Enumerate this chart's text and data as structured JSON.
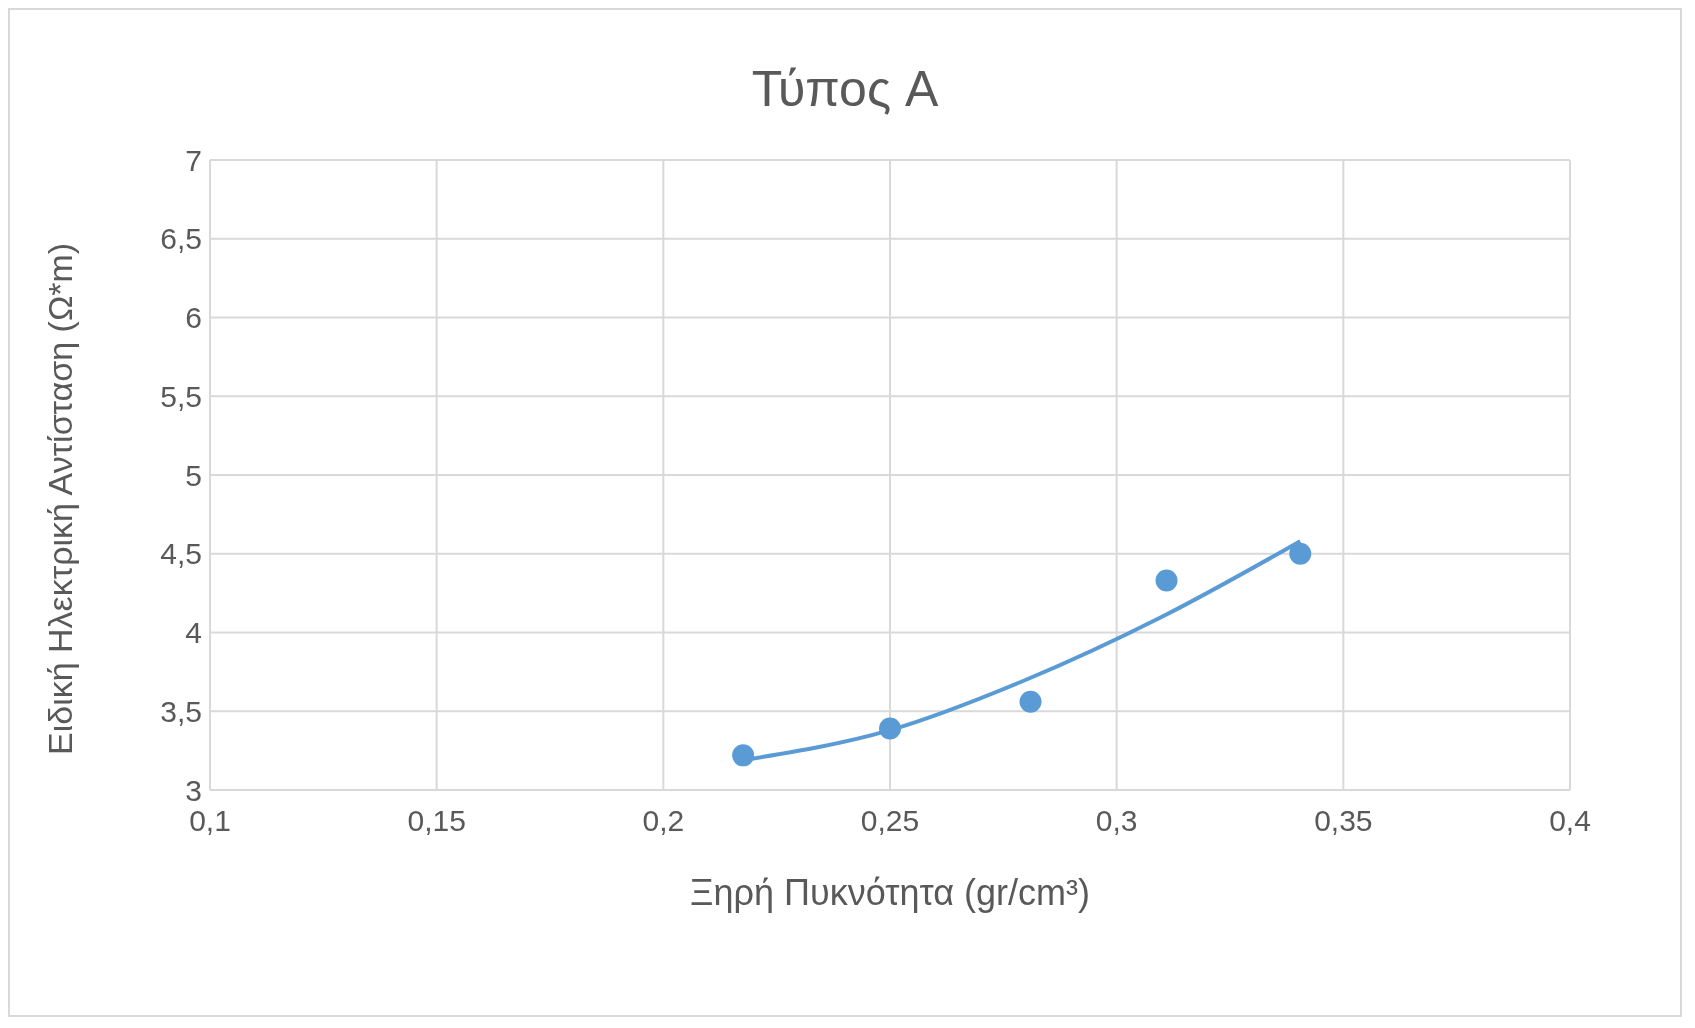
{
  "chart_data": {
    "type": "scatter",
    "title": "Τύπος A",
    "xlabel": "Ξηρή Πυκνότητα (gr/cm³)",
    "ylabel": "Ειδική Ηλεκτρική Αντίσταση (Ω*m)",
    "series": [
      {
        "marker": "circle",
        "color": "#5b9bd5",
        "x": [
          0.2176,
          0.25,
          0.281,
          0.311,
          0.3405
        ],
        "values": [
          3.22,
          3.39,
          3.56,
          4.33,
          4.5
        ]
      },
      {
        "type": "line",
        "color": "#5b9bd5",
        "x": [
          0.2176,
          0.25,
          0.28,
          0.31,
          0.3405
        ],
        "values": [
          3.19,
          3.38,
          3.7,
          4.1,
          4.58
        ]
      }
    ],
    "xlim": [
      0.1,
      0.4
    ],
    "xticks": [
      {
        "value": 0.1,
        "label": "0,1"
      },
      {
        "value": 0.15,
        "label": "0,15"
      },
      {
        "value": 0.2,
        "label": "0,2"
      },
      {
        "value": 0.25,
        "label": "0,25"
      },
      {
        "value": 0.3,
        "label": "0,3"
      },
      {
        "value": 0.35,
        "label": "0,35"
      },
      {
        "value": 0.4,
        "label": "0,4"
      }
    ],
    "ylim": [
      3,
      7
    ],
    "yticks": [
      3,
      {
        "value": 3.5,
        "label": "3,5"
      },
      4,
      {
        "value": 4.5,
        "label": "4,5"
      },
      5,
      {
        "value": 5.5,
        "label": "5,5"
      },
      6,
      {
        "value": 6.5,
        "label": "6,5"
      },
      7
    ],
    "grid": true
  }
}
